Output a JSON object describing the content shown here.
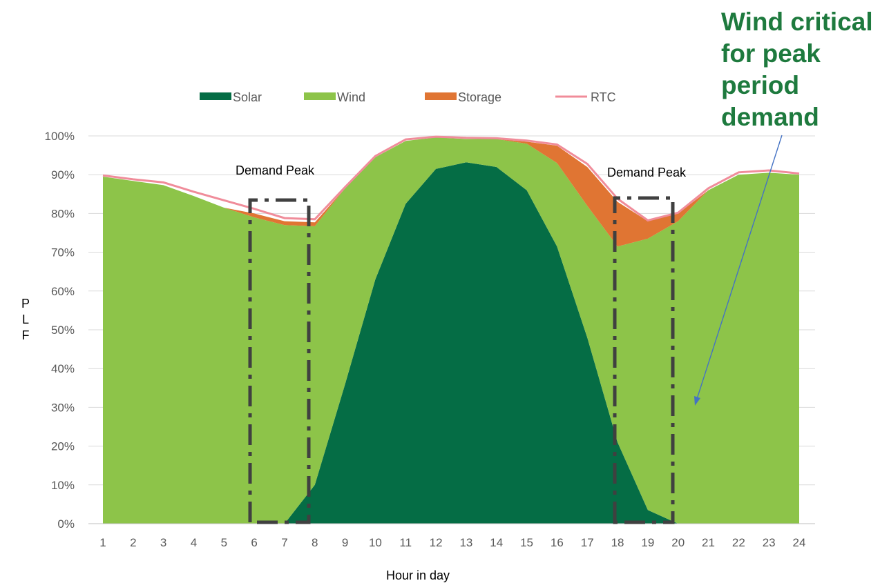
{
  "chart_data": {
    "type": "area",
    "xlabel": "Hour in day",
    "ylabel": "PLF",
    "x": [
      1,
      2,
      3,
      4,
      5,
      6,
      7,
      8,
      9,
      10,
      11,
      12,
      13,
      14,
      15,
      16,
      17,
      18,
      19,
      20,
      21,
      22,
      23,
      24
    ],
    "ylim": [
      0,
      1
    ],
    "y_ticks": [
      "0%",
      "10%",
      "20%",
      "30%",
      "40%",
      "50%",
      "60%",
      "70%",
      "80%",
      "90%",
      "100%"
    ],
    "stacked": true,
    "legend_position": "top",
    "series": [
      {
        "name": "Solar",
        "type": "area",
        "color": "#056d45",
        "values": [
          0,
          0,
          0,
          0,
          0,
          0,
          0,
          0.1,
          0.36,
          0.63,
          0.825,
          0.915,
          0.932,
          0.92,
          0.86,
          0.715,
          0.48,
          0.21,
          0.035,
          0,
          0,
          0,
          0,
          0
        ]
      },
      {
        "name": "Wind",
        "type": "area",
        "color": "#8dc449",
        "values": [
          0.895,
          0.884,
          0.873,
          0.845,
          0.815,
          0.79,
          0.77,
          0.667,
          0.505,
          0.315,
          0.162,
          0.081,
          0.06,
          0.072,
          0.12,
          0.215,
          0.34,
          0.505,
          0.7,
          0.78,
          0.86,
          0.9,
          0.905,
          0.9
        ]
      },
      {
        "name": "Storage",
        "type": "area",
        "color": "#e07533",
        "values": [
          0,
          0,
          0,
          0,
          0,
          0.01,
          0.01,
          0.01,
          0,
          0,
          0,
          0,
          0,
          0,
          0.005,
          0.045,
          0.1,
          0.115,
          0.045,
          0.02,
          0,
          0,
          0,
          0
        ]
      },
      {
        "name": "RTC",
        "type": "line",
        "color": "#f08c9a",
        "values": [
          0.898,
          0.888,
          0.88,
          0.856,
          0.834,
          0.812,
          0.788,
          0.785,
          0.868,
          0.948,
          0.991,
          0.998,
          0.995,
          0.994,
          0.988,
          0.978,
          0.928,
          0.838,
          0.782,
          0.802,
          0.865,
          0.906,
          0.911,
          0.903
        ]
      }
    ],
    "annotations": [
      {
        "text": "Demand Peak"
      },
      {
        "text": "Demand Peak"
      },
      {
        "text": "Wind critical for peak period demand"
      }
    ],
    "peak_windows": [
      {
        "from": 6,
        "to": 8
      },
      {
        "from": 18,
        "to": 20
      }
    ]
  }
}
